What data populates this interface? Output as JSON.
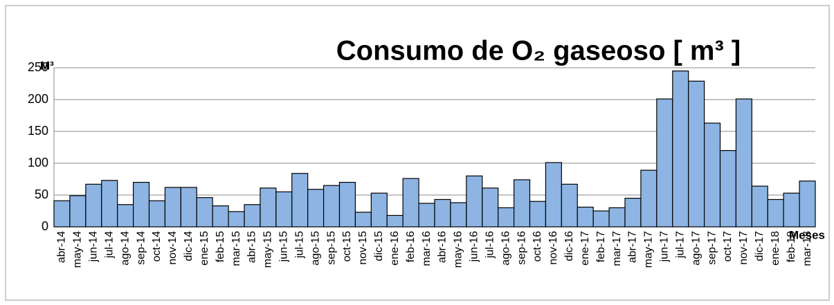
{
  "chart_data": {
    "type": "bar",
    "title": "Consumo de O₂ gaseoso [ m³ ]",
    "y_label": "M³",
    "x_label": "Meses",
    "categories": [
      "abr-14",
      "may-14",
      "jun-14",
      "jul-14",
      "ago-14",
      "sep-14",
      "oct-14",
      "nov-14",
      "dic-14",
      "ene-15",
      "feb-15",
      "mar-15",
      "abr-15",
      "may-15",
      "jun-15",
      "jul-15",
      "ago-15",
      "sep-15",
      "oct-15",
      "nov-15",
      "dic-15",
      "ene-16",
      "feb-16",
      "mar-16",
      "abr-16",
      "may-16",
      "jun-16",
      "jul-16",
      "ago-16",
      "sep-16",
      "oct-16",
      "nov-16",
      "dic-16",
      "ene-17",
      "feb-17",
      "mar-17",
      "abr-17",
      "may-17",
      "jun-17",
      "jul-17",
      "ago-17",
      "sep-17",
      "oct-17",
      "nov-17",
      "dic-17",
      "ene-18",
      "feb-18",
      "mar-18"
    ],
    "values": [
      41,
      49,
      67,
      73,
      35,
      70,
      41,
      62,
      62,
      46,
      33,
      24,
      35,
      61,
      55,
      84,
      59,
      65,
      70,
      23,
      53,
      18,
      76,
      37,
      43,
      38,
      80,
      61,
      30,
      74,
      40,
      101,
      67,
      31,
      25,
      30,
      45,
      89,
      201,
      245,
      229,
      163,
      120,
      201,
      64,
      43,
      53,
      72
    ],
    "color": "#8db4e2",
    "ylim": [
      0,
      250
    ],
    "yticks": [
      0,
      50,
      100,
      150,
      200,
      250
    ],
    "grid": true
  }
}
